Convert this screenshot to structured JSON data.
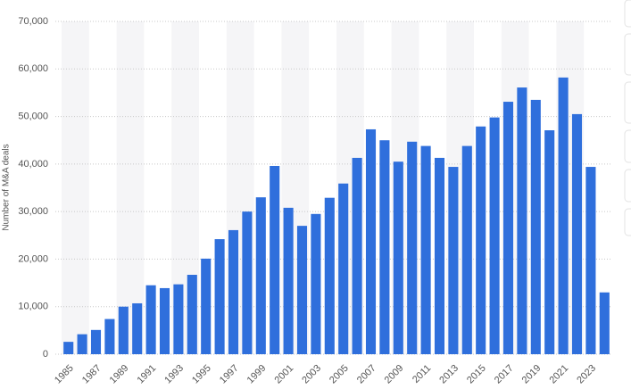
{
  "chart_data": {
    "type": "bar",
    "y_label": "Number of M&A deals",
    "categories": [
      "1985",
      null,
      "1987",
      null,
      "1989",
      null,
      "1991",
      null,
      "1993",
      null,
      "1995",
      null,
      "1997",
      null,
      "1999",
      null,
      "2001",
      null,
      "2003",
      null,
      "2005",
      null,
      "2007",
      null,
      "2009",
      null,
      "2011",
      null,
      "2013",
      null,
      "2015",
      null,
      "2017",
      null,
      "2019",
      null,
      "2021",
      null,
      "2023",
      null
    ],
    "values": [
      2600,
      4200,
      5100,
      7400,
      10000,
      10700,
      14500,
      13900,
      14700,
      16700,
      20100,
      24200,
      26100,
      30000,
      33000,
      39600,
      30800,
      27000,
      29500,
      32900,
      35900,
      41300,
      47300,
      45000,
      40500,
      44700,
      43800,
      41300,
      39400,
      43800,
      47900,
      49800,
      53100,
      56100,
      53500,
      47100,
      58200,
      50500,
      39400,
      13000
    ],
    "color": "#2f6fdc",
    "ylim": [
      0,
      70000
    ],
    "yticks": [
      0,
      {
        "value": 10000,
        "label": "10,000"
      },
      {
        "value": 20000,
        "label": "20,000"
      },
      {
        "value": 30000,
        "label": "30,000"
      },
      {
        "value": 40000,
        "label": "40,000"
      },
      {
        "value": 50000,
        "label": "50,000"
      },
      {
        "value": 60000,
        "label": "60,000"
      },
      {
        "value": 70000,
        "label": "70,000"
      }
    ],
    "grid": true
  }
}
